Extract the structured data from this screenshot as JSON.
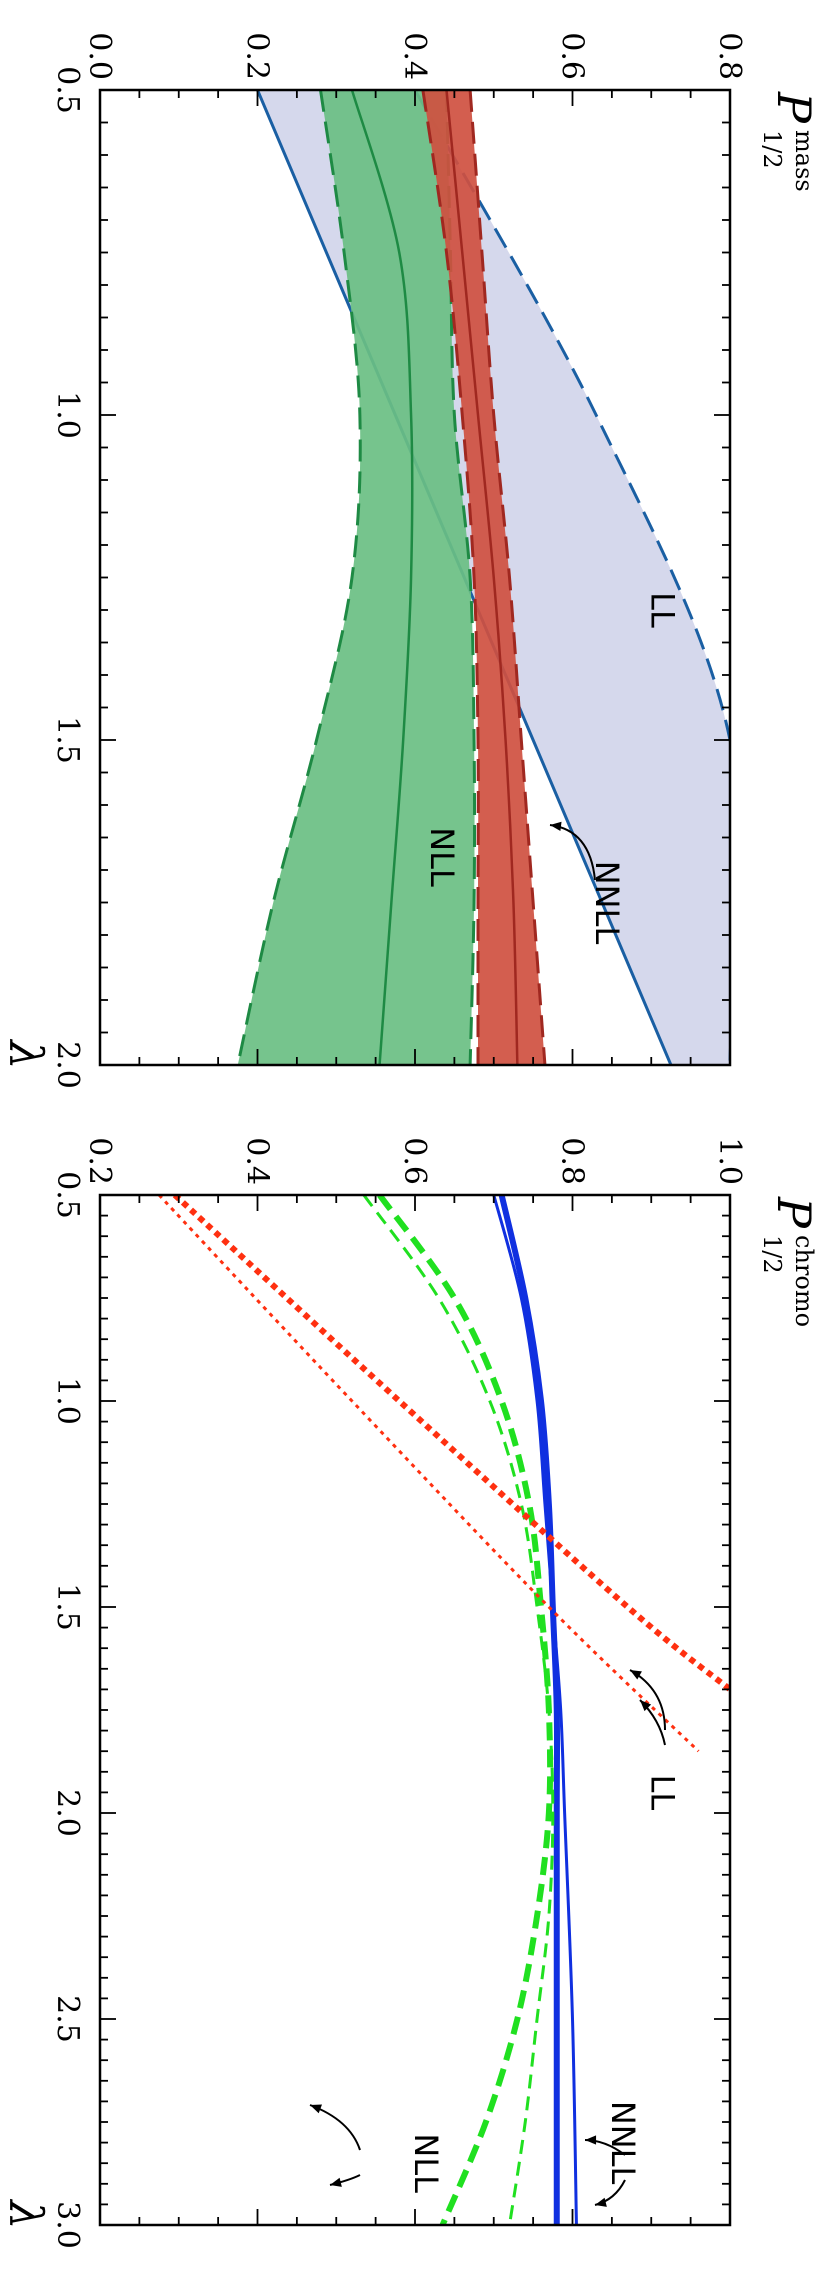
{
  "chart_data": [
    {
      "type": "line",
      "panel": "top",
      "ylabel": "P",
      "ylabel_superscript": "mass",
      "ylabel_subscript": "1/2",
      "xlabel": "λ",
      "xlim": [
        0.5,
        2.0
      ],
      "ylim": [
        0.0,
        0.8
      ],
      "x_ticks": [
        "0.5",
        "1.0",
        "1.5",
        "2.0"
      ],
      "y_ticks": [
        "0.0",
        "0.2",
        "0.4",
        "0.6",
        "0.8"
      ],
      "bands": [
        {
          "name": "LL",
          "fill": "#d5d8ec",
          "edge": "#1a5fa3",
          "x": [
            0.5,
            1.0,
            1.5,
            2.0
          ],
          "central": [
            0.2,
            0.375,
            0.55,
            0.725
          ],
          "lower": [
            0.2,
            0.375,
            0.55,
            0.725
          ],
          "upper": [
            0.4,
            0.63,
            0.8,
            0.8
          ],
          "label": "LL"
        },
        {
          "name": "NLL",
          "fill": "#6abf83",
          "edge": "#1e8a44",
          "x": [
            0.5,
            0.75,
            1.0,
            1.25,
            1.5,
            1.75,
            2.0
          ],
          "central": [
            0.32,
            0.38,
            0.395,
            0.395,
            0.385,
            0.37,
            0.355
          ],
          "lower": [
            0.28,
            0.31,
            0.33,
            0.32,
            0.275,
            0.22,
            0.175
          ],
          "upper": [
            0.44,
            0.445,
            0.45,
            0.47,
            0.475,
            0.475,
            0.47
          ],
          "label": "NLL"
        },
        {
          "name": "NNLL",
          "fill": "#cf5040",
          "edge": "#a02820",
          "x": [
            0.5,
            0.75,
            1.0,
            1.25,
            1.5,
            1.75,
            2.0
          ],
          "central": [
            0.44,
            0.46,
            0.48,
            0.5,
            0.515,
            0.525,
            0.53
          ],
          "lower": [
            0.41,
            0.44,
            0.46,
            0.475,
            0.48,
            0.48,
            0.48
          ],
          "upper": [
            0.47,
            0.485,
            0.5,
            0.52,
            0.535,
            0.55,
            0.565
          ],
          "label": "NNLL"
        }
      ],
      "annotations": [
        {
          "text": "LL",
          "x": 1.3,
          "y": 0.7
        },
        {
          "text": "NLL",
          "x": 1.68,
          "y": 0.42
        },
        {
          "text": "NNLL",
          "x": 1.75,
          "y": 0.63
        }
      ]
    },
    {
      "type": "line",
      "panel": "bottom",
      "ylabel": "P",
      "ylabel_superscript": "chromo",
      "ylabel_subscript": "1/2",
      "xlabel": "λ",
      "xlim": [
        0.5,
        3.0
      ],
      "ylim": [
        0.2,
        1.0
      ],
      "x_ticks": [
        "0.5",
        "1.0",
        "1.5",
        "2.0",
        "2.5",
        "3.0"
      ],
      "y_ticks": [
        "0.2",
        "0.4",
        "0.6",
        "0.8",
        "1.0"
      ],
      "series": [
        {
          "name": "NNLL",
          "color": "#1030e0",
          "style": "solid",
          "x": [
            0.5,
            0.75,
            1.0,
            1.25,
            1.5,
            1.75,
            2.0,
            2.5,
            3.0
          ],
          "y": [
            0.71,
            0.74,
            0.76,
            0.77,
            0.775,
            0.78,
            0.78,
            0.78,
            0.78
          ],
          "width": "thick"
        },
        {
          "name": "NNLL",
          "color": "#1030e0",
          "style": "solid",
          "x": [
            0.5,
            0.75,
            1.0,
            1.25,
            1.5,
            1.75,
            2.0,
            2.5,
            3.0
          ],
          "y": [
            0.7,
            0.735,
            0.755,
            0.765,
            0.775,
            0.785,
            0.79,
            0.8,
            0.805
          ],
          "width": "thin"
        },
        {
          "name": "NLL",
          "color": "#20e020",
          "style": "dashed",
          "x": [
            0.5,
            0.75,
            1.0,
            1.25,
            1.5,
            1.75,
            2.0,
            2.25,
            2.5,
            2.75,
            3.0
          ],
          "y": [
            0.555,
            0.65,
            0.71,
            0.745,
            0.76,
            0.77,
            0.77,
            0.755,
            0.73,
            0.69,
            0.635
          ],
          "width": "thick"
        },
        {
          "name": "NLL",
          "color": "#20e020",
          "style": "dashed",
          "x": [
            0.5,
            0.75,
            1.0,
            1.25,
            1.5,
            1.75,
            2.0,
            2.25,
            2.5,
            2.75,
            3.0
          ],
          "y": [
            0.535,
            0.63,
            0.695,
            0.735,
            0.755,
            0.77,
            0.775,
            0.77,
            0.755,
            0.74,
            0.72
          ],
          "width": "thin"
        },
        {
          "name": "LL",
          "color": "#ff3010",
          "style": "dotted",
          "x": [
            0.5,
            1.0,
            1.5,
            1.7
          ],
          "y": [
            0.295,
            0.58,
            0.87,
            1.0
          ],
          "width": "thick"
        },
        {
          "name": "LL",
          "color": "#ff3010",
          "style": "dotted",
          "x": [
            0.5,
            1.0,
            1.5,
            1.85
          ],
          "y": [
            0.275,
            0.52,
            0.77,
            0.96
          ],
          "width": "thin"
        }
      ],
      "annotations": [
        {
          "text": "LL",
          "x": 1.95,
          "y": 0.9
        },
        {
          "text": "NNLL",
          "x": 2.8,
          "y": 0.85
        },
        {
          "text": "NLL",
          "x": 2.85,
          "y": 0.6
        }
      ]
    }
  ]
}
